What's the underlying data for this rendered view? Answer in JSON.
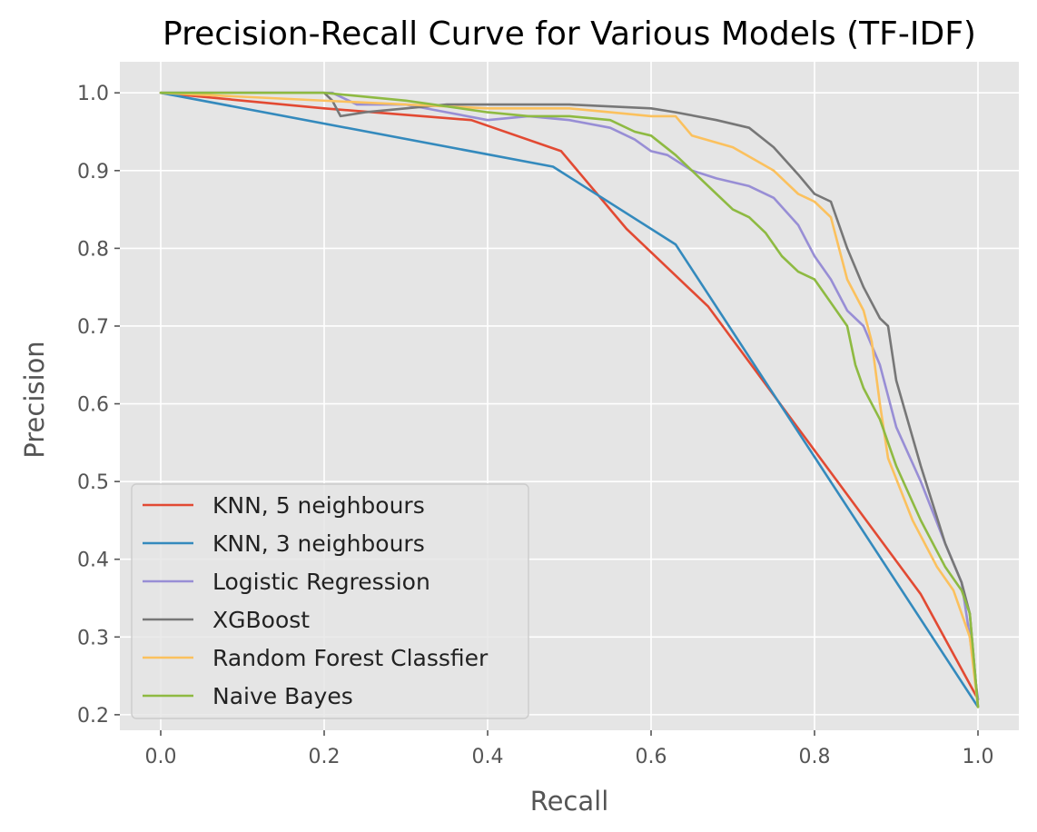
{
  "chart_data": {
    "type": "line",
    "title": "Precision-Recall Curve for Various Models (TF-IDF)",
    "xlabel": "Recall",
    "ylabel": "Precision",
    "xlim": [
      -0.05,
      1.05
    ],
    "ylim": [
      0.18,
      1.04
    ],
    "xticks": [
      0.0,
      0.2,
      0.4,
      0.6,
      0.8,
      1.0
    ],
    "xtick_labels": [
      "0.0",
      "0.2",
      "0.4",
      "0.6",
      "0.8",
      "1.0"
    ],
    "yticks": [
      0.2,
      0.3,
      0.4,
      0.5,
      0.6,
      0.7,
      0.8,
      0.9,
      1.0
    ],
    "ytick_labels": [
      "0.2",
      "0.3",
      "0.4",
      "0.5",
      "0.6",
      "0.7",
      "0.8",
      "0.9",
      "1.0"
    ],
    "grid": true,
    "background": "#e5e5e5",
    "legend_position": "lower-left",
    "series": [
      {
        "name": "KNN, 5 neighbours",
        "color": "#e24a33",
        "x": [
          0.0,
          0.2,
          0.38,
          0.49,
          0.57,
          0.67,
          0.93,
          1.0
        ],
        "y": [
          1.0,
          0.98,
          0.965,
          0.925,
          0.825,
          0.725,
          0.355,
          0.22
        ]
      },
      {
        "name": "KNN, 3 neighbours",
        "color": "#348abd",
        "x": [
          0.0,
          0.48,
          0.63,
          1.0
        ],
        "y": [
          1.0,
          0.905,
          0.805,
          0.21
        ]
      },
      {
        "name": "Logistic Regression",
        "color": "#988ed5",
        "x": [
          0.0,
          0.21,
          0.24,
          0.3,
          0.35,
          0.4,
          0.45,
          0.5,
          0.55,
          0.58,
          0.6,
          0.62,
          0.65,
          0.68,
          0.72,
          0.75,
          0.78,
          0.8,
          0.82,
          0.84,
          0.86,
          0.88,
          0.9,
          0.93,
          0.96,
          0.98,
          0.99,
          1.0
        ],
        "y": [
          1.0,
          1.0,
          0.985,
          0.985,
          0.975,
          0.965,
          0.97,
          0.965,
          0.955,
          0.94,
          0.925,
          0.92,
          0.9,
          0.89,
          0.88,
          0.865,
          0.83,
          0.79,
          0.76,
          0.72,
          0.7,
          0.65,
          0.57,
          0.5,
          0.42,
          0.37,
          0.3,
          0.22
        ]
      },
      {
        "name": "XGBoost",
        "color": "#777777",
        "x": [
          0.0,
          0.2,
          0.21,
          0.22,
          0.25,
          0.3,
          0.35,
          0.4,
          0.5,
          0.6,
          0.63,
          0.68,
          0.72,
          0.75,
          0.78,
          0.8,
          0.82,
          0.84,
          0.86,
          0.88,
          0.89,
          0.9,
          0.93,
          0.96,
          0.98,
          0.99,
          1.0
        ],
        "y": [
          1.0,
          1.0,
          0.99,
          0.97,
          0.975,
          0.98,
          0.985,
          0.985,
          0.985,
          0.98,
          0.975,
          0.965,
          0.955,
          0.93,
          0.895,
          0.87,
          0.86,
          0.8,
          0.75,
          0.71,
          0.7,
          0.63,
          0.52,
          0.42,
          0.37,
          0.33,
          0.21
        ]
      },
      {
        "name": "Random Forest Classfier",
        "color": "#fbc15e",
        "x": [
          0.0,
          0.3,
          0.4,
          0.5,
          0.55,
          0.6,
          0.63,
          0.65,
          0.7,
          0.75,
          0.78,
          0.8,
          0.82,
          0.84,
          0.86,
          0.87,
          0.88,
          0.89,
          0.92,
          0.95,
          0.97,
          0.98,
          0.99,
          1.0
        ],
        "y": [
          1.0,
          0.985,
          0.98,
          0.98,
          0.975,
          0.97,
          0.97,
          0.945,
          0.93,
          0.9,
          0.87,
          0.86,
          0.84,
          0.76,
          0.72,
          0.68,
          0.6,
          0.53,
          0.45,
          0.39,
          0.36,
          0.33,
          0.3,
          0.21
        ]
      },
      {
        "name": "Naive Bayes",
        "color": "#8eba42",
        "x": [
          0.0,
          0.2,
          0.3,
          0.4,
          0.45,
          0.5,
          0.55,
          0.58,
          0.6,
          0.63,
          0.65,
          0.68,
          0.7,
          0.72,
          0.74,
          0.76,
          0.78,
          0.8,
          0.82,
          0.84,
          0.85,
          0.86,
          0.88,
          0.9,
          0.93,
          0.96,
          0.98,
          0.99,
          1.0
        ],
        "y": [
          1.0,
          1.0,
          0.99,
          0.975,
          0.97,
          0.97,
          0.965,
          0.95,
          0.945,
          0.92,
          0.9,
          0.87,
          0.85,
          0.84,
          0.82,
          0.79,
          0.77,
          0.76,
          0.73,
          0.7,
          0.65,
          0.62,
          0.58,
          0.52,
          0.45,
          0.39,
          0.36,
          0.33,
          0.21
        ]
      }
    ]
  }
}
